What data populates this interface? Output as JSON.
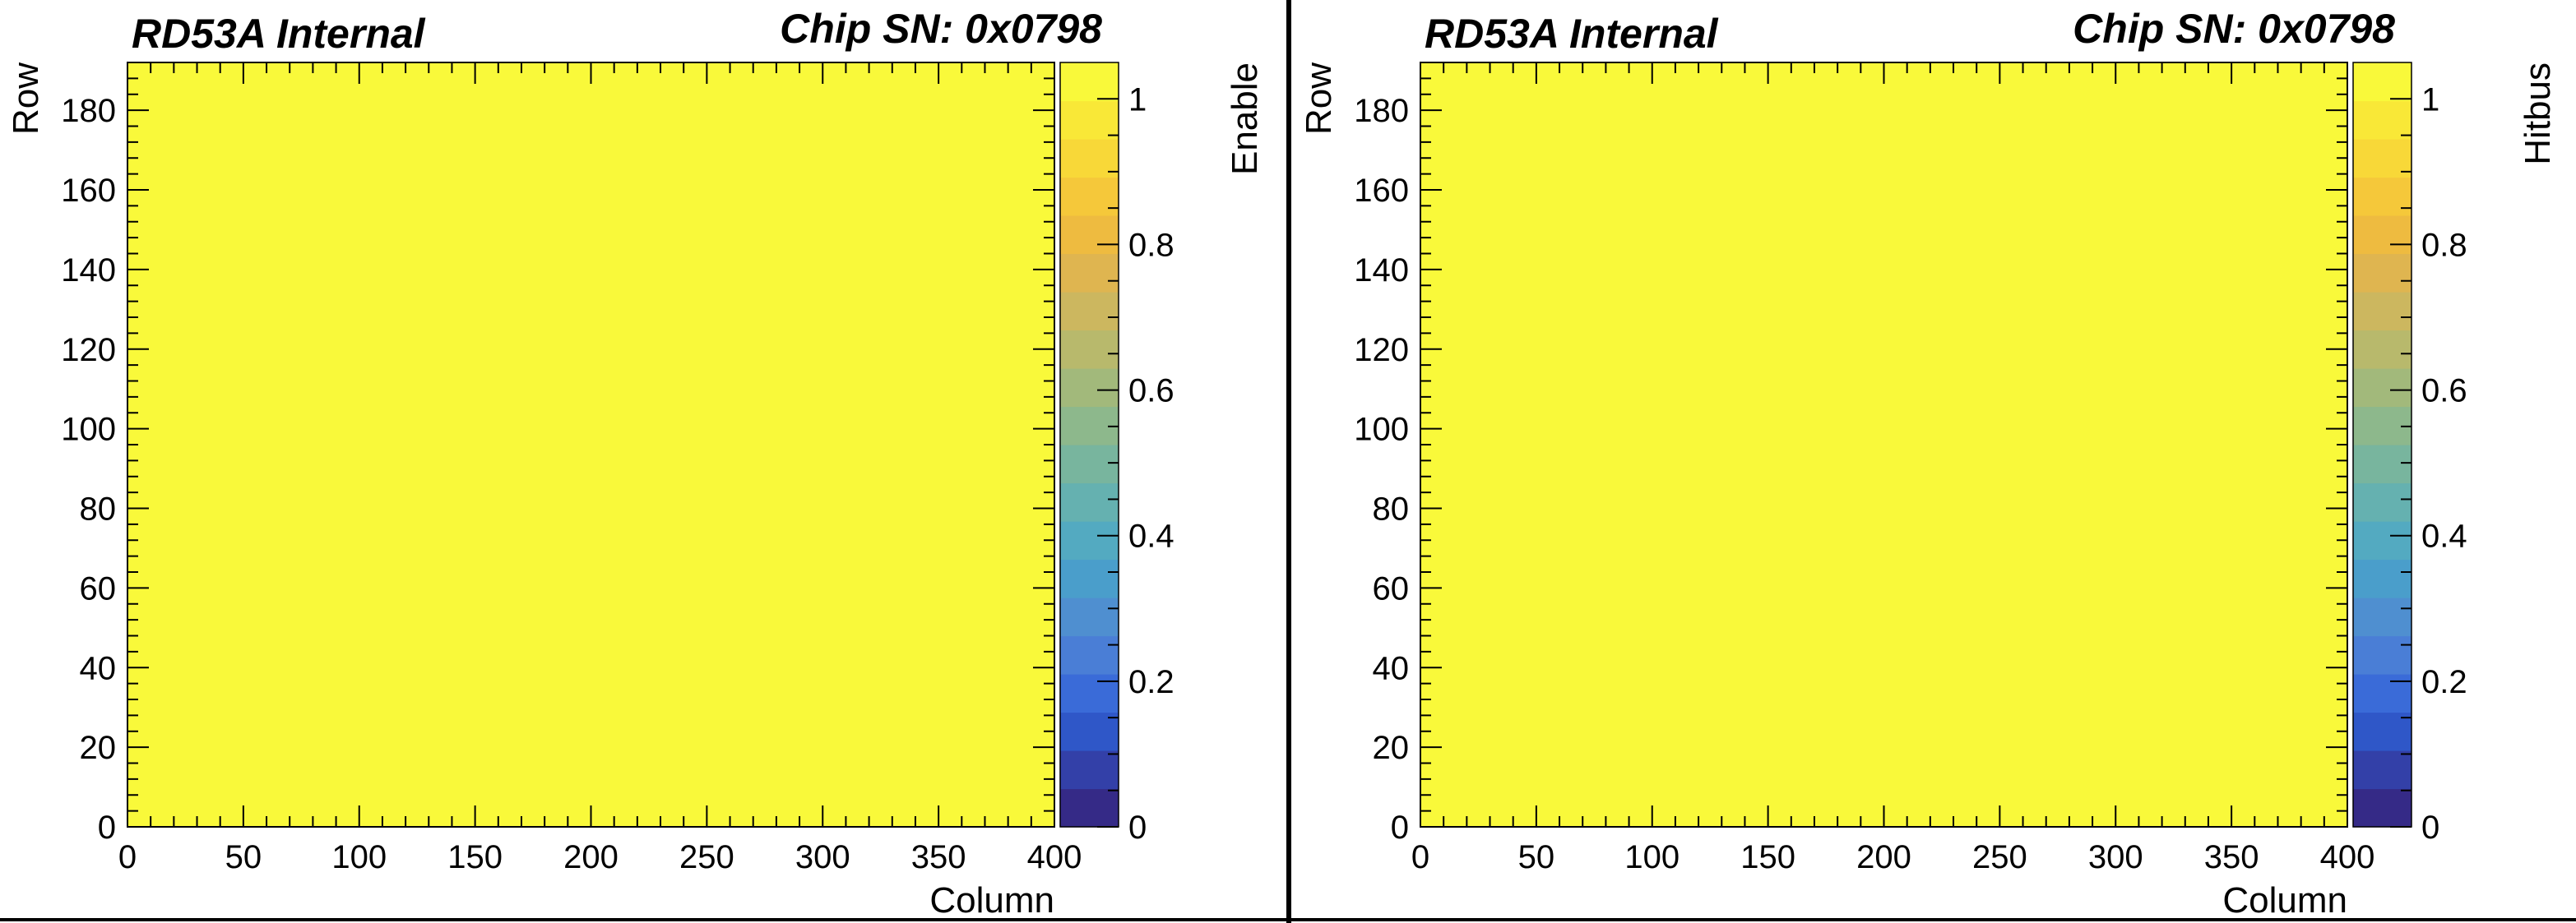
{
  "chart_data": [
    {
      "type": "heatmap",
      "title_left": "RD53A Internal",
      "title_right": "Chip SN: 0x0798",
      "xlabel": "Column",
      "ylabel": "Row",
      "zlabel": "Enable",
      "xlim": [
        0,
        400
      ],
      "ylim": [
        0,
        192
      ],
      "zlim": [
        0,
        1.05
      ],
      "x_ticks": [
        "0",
        "50",
        "100",
        "150",
        "200",
        "250",
        "300",
        "350",
        "400"
      ],
      "y_ticks": [
        "0",
        "20",
        "40",
        "60",
        "80",
        "100",
        "120",
        "140",
        "160",
        "180"
      ],
      "z_ticks": [
        "0",
        "0.2",
        "0.4",
        "0.6",
        "0.8",
        "1"
      ],
      "cell_value": 1,
      "cell_color": "#f9f93a",
      "grid": false
    },
    {
      "type": "heatmap",
      "title_left": "RD53A Internal",
      "title_right": "Chip SN: 0x0798",
      "xlabel": "Column",
      "ylabel": "Row",
      "zlabel": "Hitbus",
      "xlim": [
        0,
        400
      ],
      "ylim": [
        0,
        192
      ],
      "zlim": [
        0,
        1.05
      ],
      "x_ticks": [
        "0",
        "50",
        "100",
        "150",
        "200",
        "250",
        "300",
        "350",
        "400"
      ],
      "y_ticks": [
        "0",
        "20",
        "40",
        "60",
        "80",
        "100",
        "120",
        "140",
        "160",
        "180"
      ],
      "z_ticks": [
        "0",
        "0.2",
        "0.4",
        "0.6",
        "0.8",
        "1"
      ],
      "cell_value": 1,
      "cell_color": "#f9f93a",
      "grid": false
    }
  ],
  "palette": [
    "#352a87",
    "#3340a8",
    "#2f57c8",
    "#3a6bd8",
    "#4a7ed6",
    "#4f8fd0",
    "#4a9ecb",
    "#53aac1",
    "#65b1b0",
    "#78b59e",
    "#8db88c",
    "#a2b97b",
    "#b8b96c",
    "#ccb75f",
    "#dfb550",
    "#eebb40",
    "#f5c83a",
    "#f8d838",
    "#f9e837",
    "#f9f93a"
  ]
}
